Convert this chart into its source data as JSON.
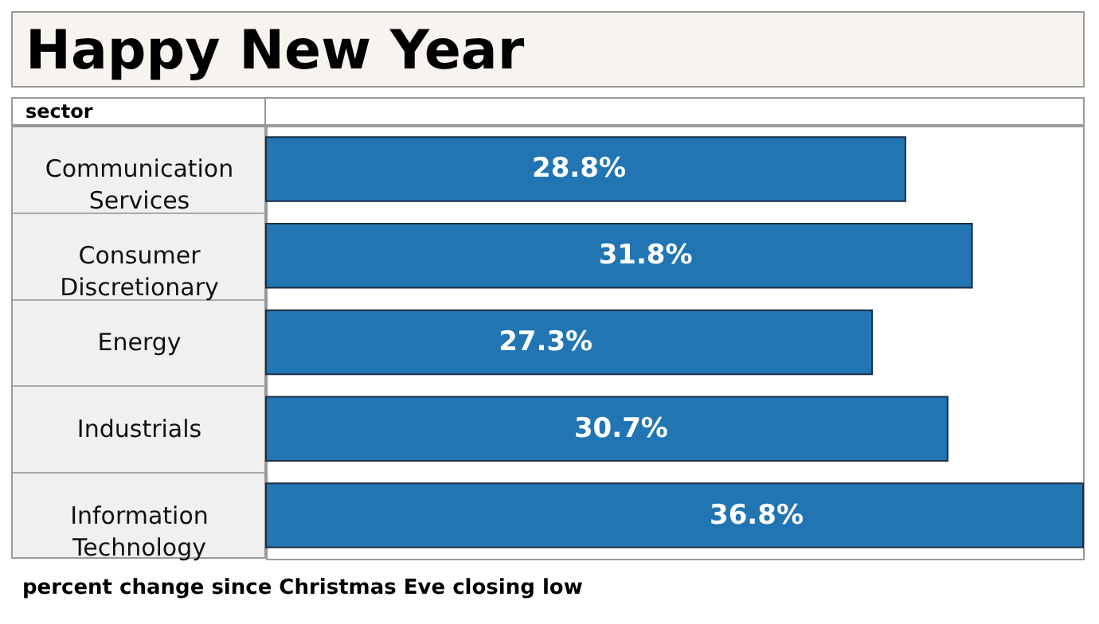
{
  "chart_data": {
    "type": "bar",
    "orientation": "horizontal",
    "title": "Happy New Year",
    "ylabel": "sector",
    "categories": [
      "Communication Services",
      "Consumer Discretionary",
      "Energy",
      "Industrials",
      "Information Technology"
    ],
    "values": [
      28.8,
      31.8,
      27.3,
      30.7,
      36.8
    ],
    "value_labels": [
      "28.8%",
      "31.8%",
      "27.3%",
      "30.7%",
      "36.8%"
    ],
    "color": "#2175b3",
    "annotations": [
      "percent change since Christmas Eve closing low"
    ]
  }
}
